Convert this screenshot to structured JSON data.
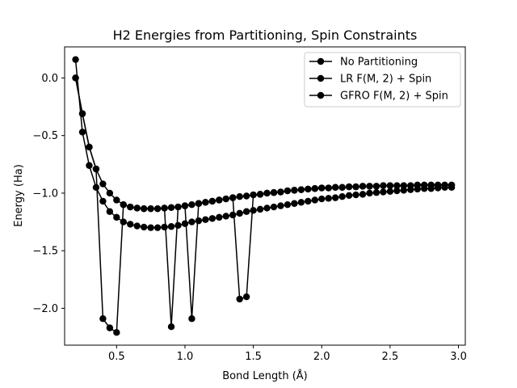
{
  "chart_data": {
    "type": "line",
    "title": "H2 Energies from Partitioning, Spin Constraints",
    "xlabel": "Bond Length (Å)",
    "ylabel": "Energy (Ha)",
    "xlim": [
      0.12,
      3.05
    ],
    "ylim": [
      -2.32,
      0.27
    ],
    "xticks": [
      0.5,
      1.0,
      1.5,
      2.0,
      2.5,
      3.0
    ],
    "xtick_labels": [
      "0.5",
      "1.0",
      "1.5",
      "2.0",
      "2.5",
      "3.0"
    ],
    "yticks": [
      0.0,
      -0.5,
      -1.0,
      -1.5,
      -2.0
    ],
    "ytick_labels": [
      "0.0",
      "−0.5",
      "−1.0",
      "−1.5",
      "−2.0"
    ],
    "grid": false,
    "legend_position": "upper right",
    "series_color": "#000000",
    "x": [
      0.2,
      0.25,
      0.3,
      0.35,
      0.4,
      0.45,
      0.5,
      0.55,
      0.6,
      0.65,
      0.7,
      0.75,
      0.8,
      0.85,
      0.9,
      0.95,
      1.0,
      1.05,
      1.1,
      1.15,
      1.2,
      1.25,
      1.3,
      1.35,
      1.4,
      1.45,
      1.5,
      1.55,
      1.6,
      1.65,
      1.7,
      1.75,
      1.8,
      1.85,
      1.9,
      1.95,
      2.0,
      2.05,
      2.1,
      2.15,
      2.2,
      2.25,
      2.3,
      2.35,
      2.4,
      2.45,
      2.5,
      2.55,
      2.6,
      2.65,
      2.7,
      2.75,
      2.8,
      2.85,
      2.9,
      2.95
    ],
    "series": [
      {
        "name": "No Partitioning",
        "values": [
          0.16,
          -0.47,
          -0.76,
          -0.95,
          -1.07,
          -1.16,
          -1.21,
          -1.25,
          -1.27,
          -1.285,
          -1.295,
          -1.3,
          -1.3,
          -1.295,
          -1.29,
          -1.28,
          -1.265,
          -1.25,
          -1.24,
          -1.23,
          -1.22,
          -1.21,
          -1.2,
          -1.19,
          -1.175,
          -1.16,
          -1.15,
          -1.14,
          -1.13,
          -1.12,
          -1.11,
          -1.1,
          -1.09,
          -1.08,
          -1.07,
          -1.06,
          -1.05,
          -1.045,
          -1.04,
          -1.03,
          -1.02,
          -1.015,
          -1.01,
          -1.0,
          -0.995,
          -0.99,
          -0.985,
          -0.98,
          -0.975,
          -0.97,
          -0.965,
          -0.96,
          -0.96,
          -0.955,
          -0.95,
          -0.95
        ]
      },
      {
        "name": "LR F(M, 2) + Spin",
        "values": [
          0.0,
          -0.31,
          -0.6,
          -0.79,
          -0.92,
          -1.0,
          -1.06,
          -1.1,
          -1.12,
          -1.13,
          -1.135,
          -1.135,
          -1.135,
          -1.13,
          -1.125,
          -1.12,
          -1.11,
          -1.1,
          -1.09,
          -1.08,
          -1.07,
          -1.06,
          -1.05,
          -1.04,
          -1.03,
          -1.025,
          -1.015,
          -1.01,
          -1.0,
          -0.995,
          -0.99,
          -0.98,
          -0.975,
          -0.97,
          -0.965,
          -0.96,
          -0.955,
          -0.955,
          -0.95,
          -0.95,
          -0.945,
          -0.945,
          -0.94,
          -0.94,
          -0.94,
          -0.935,
          -0.935,
          -0.935,
          -0.935,
          -0.935,
          -0.93,
          -0.93,
          -0.93,
          -0.93,
          -0.93,
          -0.93
        ]
      },
      {
        "name": "GFRO F(M, 2) + Spin",
        "values": [
          0.0,
          -0.31,
          -0.6,
          -0.79,
          -2.09,
          -2.17,
          -2.21,
          -1.1,
          -1.12,
          -1.13,
          -1.135,
          -1.135,
          -1.135,
          -1.13,
          -2.16,
          -1.12,
          -1.11,
          -2.09,
          -1.09,
          -1.08,
          -1.07,
          -1.06,
          -1.05,
          -1.04,
          -1.92,
          -1.9,
          -1.015,
          -1.01,
          -1.0,
          -0.995,
          -0.99,
          -0.98,
          -0.975,
          -0.97,
          -0.965,
          -0.96,
          -0.955,
          -0.955,
          -0.95,
          -0.95,
          -0.945,
          -0.945,
          -0.94,
          -0.94,
          -0.94,
          -0.935,
          -0.935,
          -0.935,
          -0.935,
          -0.935,
          -0.93,
          -0.93,
          -0.93,
          -0.93,
          -0.93,
          -0.93
        ]
      }
    ]
  }
}
